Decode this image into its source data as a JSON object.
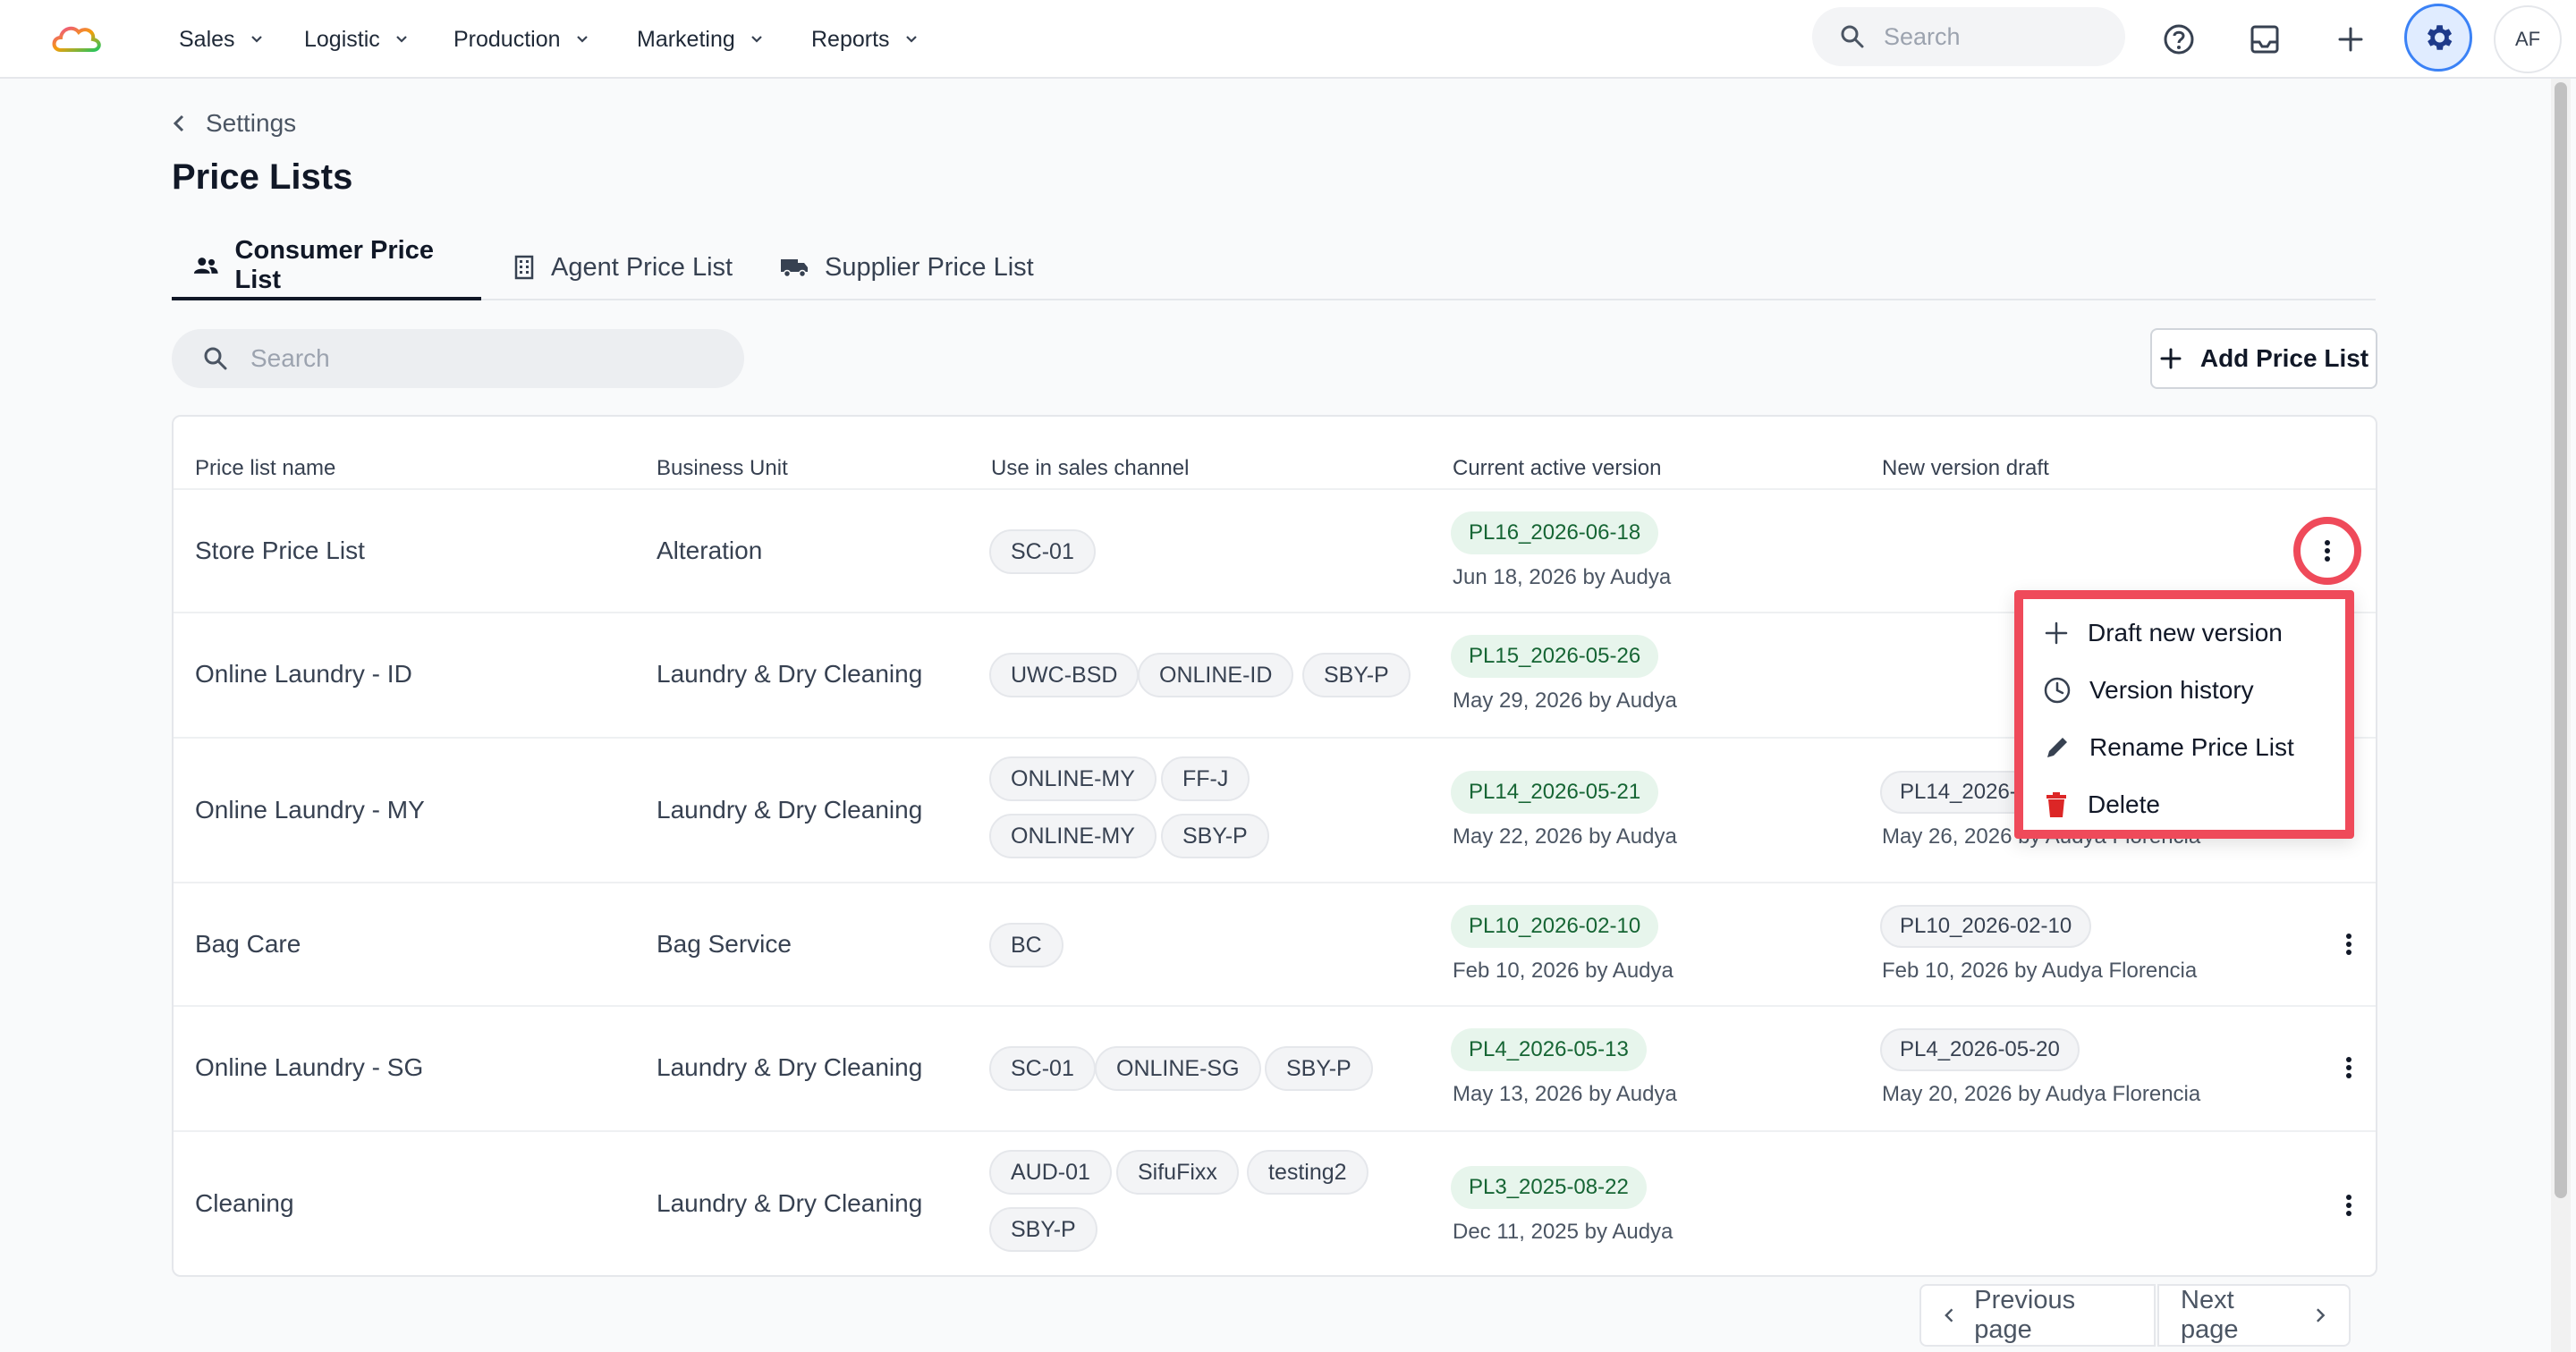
{
  "nav": {
    "items": [
      {
        "label": "Sales"
      },
      {
        "label": "Logistic"
      },
      {
        "label": "Production"
      },
      {
        "label": "Marketing"
      },
      {
        "label": "Reports"
      }
    ],
    "search_placeholder": "Search",
    "avatar_initials": "AF"
  },
  "breadcrumb": {
    "label": "Settings"
  },
  "page": {
    "title": "Price Lists"
  },
  "tabs": [
    {
      "label": "Consumer Price List",
      "icon": "users-icon",
      "active": true
    },
    {
      "label": "Agent Price List",
      "icon": "building-icon",
      "active": false
    },
    {
      "label": "Supplier Price List",
      "icon": "truck-icon",
      "active": false
    }
  ],
  "list_search": {
    "placeholder": "Search"
  },
  "add_button": {
    "label": "Add Price List"
  },
  "table": {
    "headers": [
      "Price list name",
      "Business Unit",
      "Use in sales channel",
      "Current active version",
      "New version draft"
    ],
    "rows": [
      {
        "name": "Store Price List",
        "business_unit": "Alteration",
        "channels": [
          "SC-01"
        ],
        "active_version": "PL16_2026-06-18",
        "active_meta": "Jun 18, 2026 by Audya",
        "draft_version": "",
        "draft_meta": ""
      },
      {
        "name": "Online Laundry - ID",
        "business_unit": "Laundry & Dry Cleaning",
        "channels": [
          "UWC-BSD",
          "ONLINE-ID",
          "SBY-P"
        ],
        "active_version": "PL15_2026-05-26",
        "active_meta": "May 29, 2026 by Audya",
        "draft_version": "",
        "draft_meta": ""
      },
      {
        "name": "Online Laundry - MY",
        "business_unit": "Laundry & Dry Cleaning",
        "channels": [
          "ONLINE-MY",
          "FF-J",
          "ONLINE-MY",
          "SBY-P"
        ],
        "active_version": "PL14_2026-05-21",
        "active_meta": "May 22, 2026 by Audya",
        "draft_version": "PL14_2026-",
        "draft_meta": "May 26, 2026 by Audya Florencia"
      },
      {
        "name": "Bag Care",
        "business_unit": "Bag Service",
        "channels": [
          "BC"
        ],
        "active_version": "PL10_2026-02-10",
        "active_meta": "Feb 10, 2026 by Audya",
        "draft_version": "PL10_2026-02-10",
        "draft_meta": "Feb 10, 2026 by Audya Florencia"
      },
      {
        "name": "Online Laundry - SG",
        "business_unit": "Laundry & Dry Cleaning",
        "channels": [
          "SC-01",
          "ONLINE-SG",
          "SBY-P"
        ],
        "active_version": "PL4_2026-05-13",
        "active_meta": "May 13, 2026 by Audya",
        "draft_version": "PL4_2026-05-20",
        "draft_meta": "May 20, 2026 by Audya Florencia"
      },
      {
        "name": "Cleaning",
        "business_unit": "Laundry & Dry Cleaning",
        "channels": [
          "AUD-01",
          "SifuFixx",
          "testing2",
          "SBY-P"
        ],
        "active_version": "PL3_2025-08-22",
        "active_meta": "Dec 11, 2025 by Audya",
        "draft_version": "",
        "draft_meta": ""
      }
    ]
  },
  "menu": {
    "items": [
      {
        "label": "Draft new version",
        "icon": "plus-icon"
      },
      {
        "label": "Version history",
        "icon": "clock-icon"
      },
      {
        "label": "Rename Price List",
        "icon": "pencil-icon"
      },
      {
        "label": "Delete",
        "icon": "trash-icon"
      }
    ]
  },
  "pagination": {
    "prev": "Previous page",
    "next": "Next page"
  },
  "colors": {
    "accent": "#3b82f6",
    "highlight": "#ef4a5a",
    "version_green_bg": "#e7f5ec",
    "version_green_text": "#166534",
    "danger": "#dc2626"
  }
}
